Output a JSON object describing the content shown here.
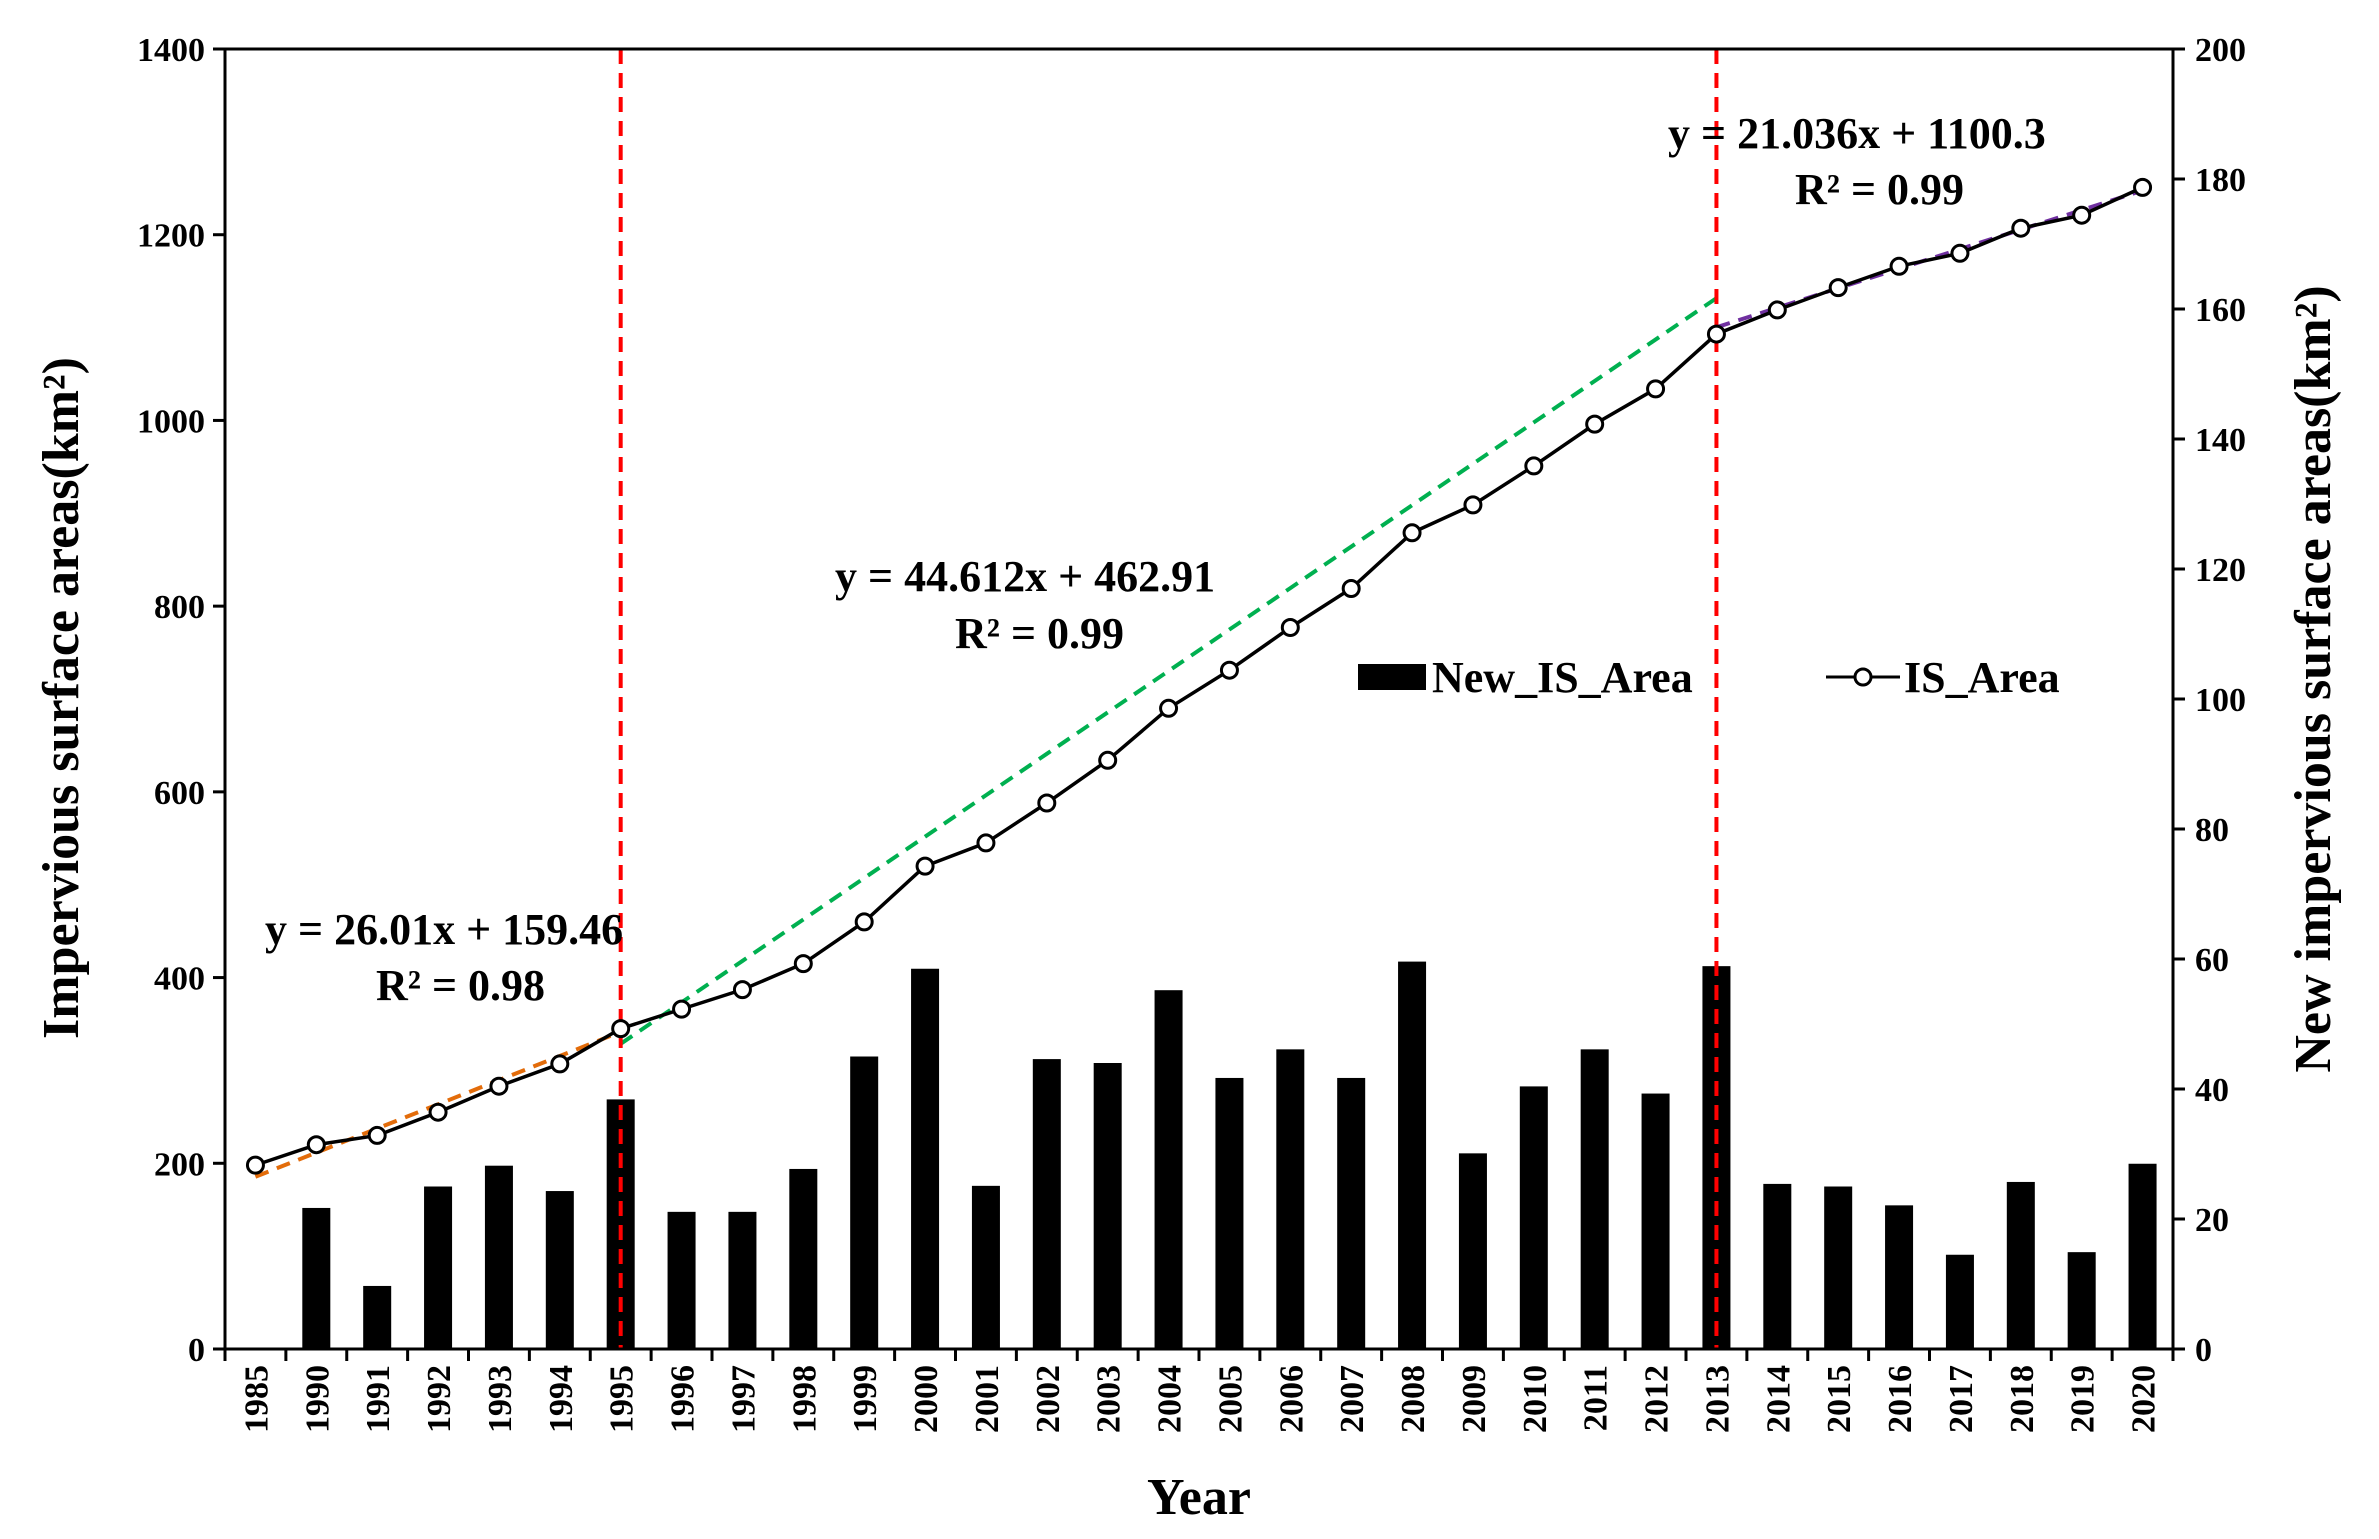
{
  "chart_data": {
    "type": "bar+line",
    "categories": [
      "1985",
      "1990",
      "1991",
      "1992",
      "1993",
      "1994",
      "1995",
      "1996",
      "1997",
      "1998",
      "1999",
      "2000",
      "2001",
      "2002",
      "2003",
      "2004",
      "2005",
      "2006",
      "2007",
      "2008",
      "2009",
      "2010",
      "2011",
      "2012",
      "2013",
      "2014",
      "2015",
      "2016",
      "2017",
      "2018",
      "2019",
      "2020"
    ],
    "series": [
      {
        "name": "New_IS_Area",
        "type": "bar",
        "axis": "right",
        "color": "#000000",
        "values": [
          0,
          21.7,
          9.7,
          25,
          28.2,
          24.3,
          38.4,
          21.1,
          21.1,
          27.7,
          45,
          58.5,
          25.1,
          44.6,
          44,
          55.2,
          41.7,
          46.1,
          41.7,
          59.6,
          30.1,
          40.4,
          46.1,
          39.3,
          58.9,
          25.4,
          25,
          22.1,
          14.5,
          25.7,
          14.9,
          28.5
        ]
      },
      {
        "name": "IS_Area",
        "type": "line",
        "axis": "left",
        "color": "#000000",
        "marker": "open-circle",
        "values": [
          198,
          220,
          230,
          255,
          283,
          307,
          345,
          366,
          387,
          415,
          460,
          520,
          545,
          588,
          634,
          690,
          731,
          777,
          819,
          879,
          909,
          951,
          996,
          1034,
          1093,
          1119,
          1143,
          1166,
          1180,
          1207,
          1221,
          1251
        ]
      }
    ],
    "trendlines": [
      {
        "start": "1985",
        "end": "1995",
        "color": "#e36c0a",
        "equation": "y = 26.01x + 159.46",
        "r2": "R² = 0.98",
        "y0": 185.47,
        "slope": 26.01
      },
      {
        "start": "1995",
        "end": "2013",
        "color": "#00b050",
        "equation": "y = 44.612x + 462.91",
        "r2": "R² = 0.99",
        "y0": 328.69,
        "slope": 44.612
      },
      {
        "start": "2013",
        "end": "2020",
        "color": "#7030a0",
        "equation": "y = 21.036x + 1100.3",
        "r2": "R² = 0.99",
        "y0": 1100.3,
        "slope": 21.036
      }
    ],
    "breakpoints": [
      "1995",
      "2013"
    ],
    "breakpoint_color": "#ff0000",
    "xlabel": "Year",
    "ylabel_left": "Impervious surface areas(km²)",
    "ylabel_right": "New impervious surface areas(km²)",
    "ylim_left": [
      0,
      1400
    ],
    "ylim_right": [
      0,
      200
    ],
    "yticks_left": [
      0,
      200,
      400,
      600,
      800,
      1000,
      1200,
      1400
    ],
    "yticks_right": [
      0,
      20,
      40,
      60,
      80,
      100,
      120,
      140,
      160,
      180,
      200
    ],
    "grid": false,
    "legend": {
      "position": "center-right",
      "bar_label": "New_IS_Area",
      "line_label": "IS_Area"
    }
  }
}
